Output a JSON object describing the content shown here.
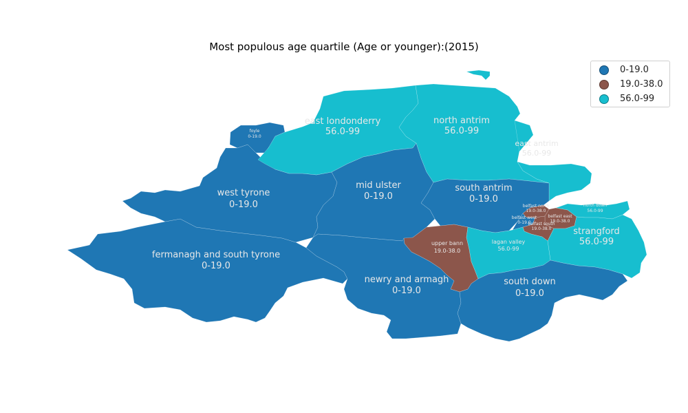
{
  "title": "Most populous age quartile (Age or younger):(2015)",
  "legend": [
    {
      "label": "0-19.0",
      "color": "#1f77b4"
    },
    {
      "label": "19.0-38.0",
      "color": "#8c564b"
    },
    {
      "label": "56.0-99",
      "color": "#17becf"
    }
  ],
  "regions": {
    "foyle": {
      "name": "foyle",
      "value": "0-19.0"
    },
    "east_londonderry": {
      "name": "east londonderry",
      "value": "56.0-99"
    },
    "north_antrim": {
      "name": "north antrim",
      "value": "56.0-99"
    },
    "east_antrim": {
      "name": "east antrim",
      "value": "56.0-99"
    },
    "west_tyrone": {
      "name": "west tyrone",
      "value": "0-19.0"
    },
    "mid_ulster": {
      "name": "mid ulster",
      "value": "0-19.0"
    },
    "south_antrim": {
      "name": "south antrim",
      "value": "0-19.0"
    },
    "belfast_north": {
      "name": "belfast north",
      "value": "19.0-38.0"
    },
    "belfast_west": {
      "name": "belfast west",
      "value": "0-19.0"
    },
    "belfast_east": {
      "name": "belfast east",
      "value": "19.0-38.0"
    },
    "belfast_south": {
      "name": "belfast south",
      "value": "19.0-38.0"
    },
    "north_down": {
      "name": "north down",
      "value": "56.0-99"
    },
    "strangford": {
      "name": "strangford",
      "value": "56.0-99"
    },
    "fermanagh_south_tyrone": {
      "name": "fermanagh and south tyrone",
      "value": "0-19.0"
    },
    "upper_bann": {
      "name": "upper bann",
      "value": "19.0-38.0"
    },
    "lagan_valley": {
      "name": "lagan valley",
      "value": "56.0-99"
    },
    "newry_armagh": {
      "name": "newry and armagh",
      "value": "0-19.0"
    },
    "south_down": {
      "name": "south down",
      "value": "0-19.0"
    }
  }
}
